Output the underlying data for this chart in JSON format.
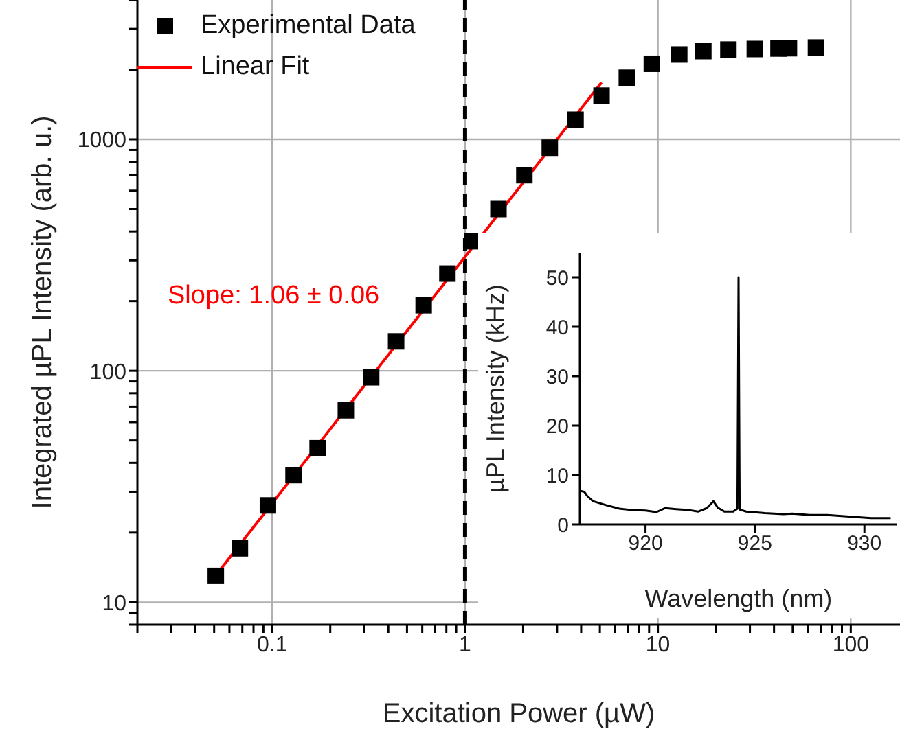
{
  "chart_data": [
    {
      "type": "scatter",
      "xlabel": "Excitation Power (µW)",
      "ylabel": "Integrated µPL Intensity (arb. u.)",
      "log": "xy",
      "grid": true,
      "legend": "top left",
      "xlim": [
        0.02,
        180
      ],
      "ylim": [
        8,
        4000
      ],
      "xticks": [
        {
          "value": 0.02,
          "label": null
        },
        {
          "value": 0.03,
          "label": null
        },
        {
          "value": 0.04,
          "label": null
        },
        {
          "value": 0.05,
          "label": null
        },
        {
          "value": 0.06,
          "label": null
        },
        {
          "value": 0.07,
          "label": null
        },
        {
          "value": 0.08,
          "label": null
        },
        {
          "value": 0.09,
          "label": null
        },
        0.1,
        {
          "value": 0.2,
          "label": null
        },
        {
          "value": 0.3,
          "label": null
        },
        {
          "value": 0.4,
          "label": null
        },
        {
          "value": 0.5,
          "label": null
        },
        {
          "value": 0.6,
          "label": null
        },
        {
          "value": 0.7,
          "label": null
        },
        {
          "value": 0.8,
          "label": null
        },
        {
          "value": 0.9,
          "label": null
        },
        1,
        {
          "value": 2,
          "label": null
        },
        {
          "value": 3,
          "label": null
        },
        {
          "value": 4,
          "label": null
        },
        {
          "value": 5,
          "label": null
        },
        {
          "value": 6,
          "label": null
        },
        {
          "value": 7,
          "label": null
        },
        {
          "value": 8,
          "label": null
        },
        {
          "value": 9,
          "label": null
        },
        10,
        {
          "value": 20,
          "label": null
        },
        {
          "value": 30,
          "label": null
        },
        {
          "value": 40,
          "label": null
        },
        {
          "value": 50,
          "label": null
        },
        {
          "value": 60,
          "label": null
        },
        {
          "value": 70,
          "label": null
        },
        {
          "value": 80,
          "label": null
        },
        {
          "value": 90,
          "label": null
        },
        100
      ],
      "yticks": [
        {
          "value": 8,
          "label": null
        },
        {
          "value": 9,
          "label": null
        },
        10,
        {
          "value": 20,
          "label": null
        },
        {
          "value": 30,
          "label": null
        },
        {
          "value": 40,
          "label": null
        },
        {
          "value": 50,
          "label": null
        },
        {
          "value": 60,
          "label": null
        },
        {
          "value": 70,
          "label": null
        },
        {
          "value": 80,
          "label": null
        },
        {
          "value": 90,
          "label": null
        },
        100,
        {
          "value": 200,
          "label": null
        },
        {
          "value": 300,
          "label": null
        },
        {
          "value": 400,
          "label": null
        },
        {
          "value": 500,
          "label": null
        },
        {
          "value": 600,
          "label": null
        },
        {
          "value": 700,
          "label": null
        },
        {
          "value": 800,
          "label": null
        },
        {
          "value": 900,
          "label": null
        },
        1000,
        {
          "value": 2000,
          "label": null
        },
        {
          "value": 3000,
          "label": null
        },
        {
          "value": 4000,
          "label": null
        }
      ],
      "ref_lines": [
        {
          "axis": "x",
          "value": 1,
          "color": "#000000",
          "line_style": "dashed"
        }
      ],
      "annotations": [
        "Slope: 1.06 ± 0.06"
      ],
      "series": [
        {
          "name": "Experimental Data",
          "type": "scatter",
          "marker": "square",
          "color": "#000000",
          "x": [
            0.051,
            0.068,
            0.095,
            0.129,
            0.172,
            0.241,
            0.326,
            0.439,
            0.61,
            0.81,
            1.09,
            1.49,
            2.03,
            2.75,
            3.74,
            5.1,
            6.9,
            9.3,
            12.9,
            17.2,
            23.2,
            31.8,
            42.2,
            47.8,
            66
          ],
          "values": [
            13,
            17.1,
            26.2,
            35.4,
            46.3,
            67.5,
            93.8,
            134,
            192,
            263,
            363,
            500,
            700,
            920,
            1215,
            1545,
            1845,
            2120,
            2325,
            2405,
            2440,
            2455,
            2468,
            2475,
            2490
          ]
        },
        {
          "name": "Linear Fit",
          "type": "line",
          "marker": "none",
          "line_style": "solid",
          "color": "#ff0000",
          "x": [
            0.05,
            5.1
          ],
          "values": [
            12.8,
            1760
          ]
        }
      ]
    },
    {
      "type": "line",
      "xlabel": "Wavelength (nm)",
      "ylabel": "µPL Intensity (kHz)",
      "grid": false,
      "xlim": [
        917,
        931.5
      ],
      "ylim": [
        0,
        55
      ],
      "xticks": [
        920,
        925,
        930
      ],
      "yticks": [
        0,
        10,
        20,
        30,
        40,
        50
      ],
      "series": [
        {
          "color": "#000000",
          "x": [
            917,
            917.2,
            917.33,
            917.6,
            918.2,
            918.8,
            919.4,
            920,
            920.5,
            920.9,
            921.4,
            922,
            922.4,
            922.8,
            923.1,
            923.3,
            923.6,
            924,
            924.2,
            924.25,
            924.3,
            924.6,
            925.45,
            926.3,
            926.7,
            927.5,
            928.3,
            929.3,
            930.3,
            931.2
          ],
          "values": [
            6.8,
            6.6,
            5.8,
            4.7,
            3.9,
            3.2,
            2.9,
            2.8,
            2.5,
            3.3,
            3.1,
            2.9,
            2.6,
            3.3,
            4.7,
            3.4,
            2.6,
            2.6,
            3.2,
            50,
            3,
            2.6,
            2.3,
            2.1,
            2.2,
            1.9,
            1.9,
            1.6,
            1.3,
            1.3
          ]
        }
      ]
    }
  ]
}
